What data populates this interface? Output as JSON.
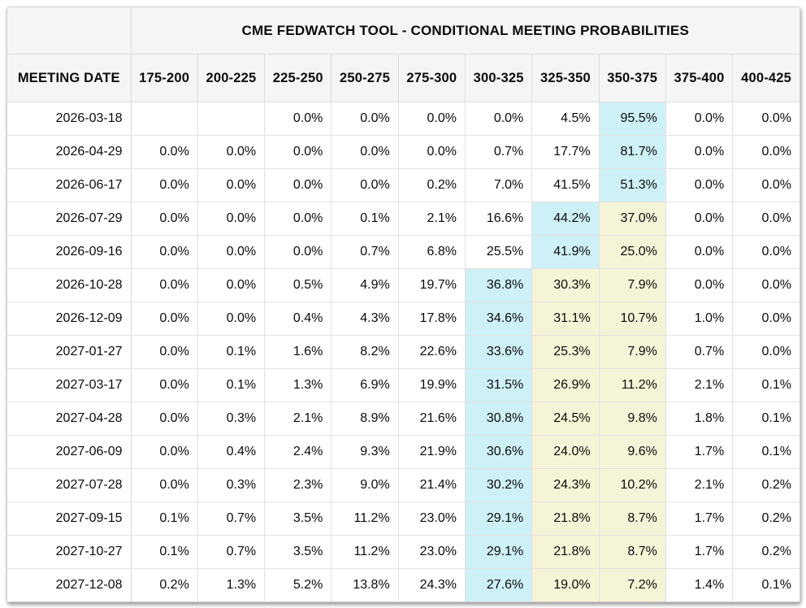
{
  "chart_data": {
    "type": "table",
    "title": "CME FEDWATCH TOOL - CONDITIONAL MEETING PROBABILITIES",
    "date_column_header": "MEETING DATE",
    "rate_range_headers": [
      "175-200",
      "200-225",
      "225-250",
      "250-275",
      "275-300",
      "300-325",
      "325-350",
      "350-375",
      "375-400",
      "400-425"
    ],
    "rows": [
      {
        "date": "2026-03-18",
        "cells": [
          "",
          "",
          "0.0%",
          "0.0%",
          "0.0%",
          "0.0%",
          "4.5%",
          "95.5%",
          "0.0%",
          "0.0%"
        ],
        "highlights": [
          "",
          "",
          "",
          "",
          "",
          "",
          "",
          "cyan",
          "",
          ""
        ]
      },
      {
        "date": "2026-04-29",
        "cells": [
          "0.0%",
          "0.0%",
          "0.0%",
          "0.0%",
          "0.0%",
          "0.7%",
          "17.7%",
          "81.7%",
          "0.0%",
          "0.0%"
        ],
        "highlights": [
          "",
          "",
          "",
          "",
          "",
          "",
          "",
          "cyan",
          "",
          ""
        ]
      },
      {
        "date": "2026-06-17",
        "cells": [
          "0.0%",
          "0.0%",
          "0.0%",
          "0.0%",
          "0.2%",
          "7.0%",
          "41.5%",
          "51.3%",
          "0.0%",
          "0.0%"
        ],
        "highlights": [
          "",
          "",
          "",
          "",
          "",
          "",
          "",
          "cyan",
          "",
          ""
        ]
      },
      {
        "date": "2026-07-29",
        "cells": [
          "0.0%",
          "0.0%",
          "0.0%",
          "0.1%",
          "2.1%",
          "16.6%",
          "44.2%",
          "37.0%",
          "0.0%",
          "0.0%"
        ],
        "highlights": [
          "",
          "",
          "",
          "",
          "",
          "",
          "cyan",
          "yellow",
          "",
          ""
        ]
      },
      {
        "date": "2026-09-16",
        "cells": [
          "0.0%",
          "0.0%",
          "0.0%",
          "0.7%",
          "6.8%",
          "25.5%",
          "41.9%",
          "25.0%",
          "0.0%",
          "0.0%"
        ],
        "highlights": [
          "",
          "",
          "",
          "",
          "",
          "",
          "cyan",
          "yellow",
          "",
          ""
        ]
      },
      {
        "date": "2026-10-28",
        "cells": [
          "0.0%",
          "0.0%",
          "0.5%",
          "4.9%",
          "19.7%",
          "36.8%",
          "30.3%",
          "7.9%",
          "0.0%",
          "0.0%"
        ],
        "highlights": [
          "",
          "",
          "",
          "",
          "",
          "cyan",
          "yellow",
          "yellow",
          "",
          ""
        ]
      },
      {
        "date": "2026-12-09",
        "cells": [
          "0.0%",
          "0.0%",
          "0.4%",
          "4.3%",
          "17.8%",
          "34.6%",
          "31.1%",
          "10.7%",
          "1.0%",
          "0.0%"
        ],
        "highlights": [
          "",
          "",
          "",
          "",
          "",
          "cyan",
          "yellow",
          "yellow",
          "",
          ""
        ]
      },
      {
        "date": "2027-01-27",
        "cells": [
          "0.0%",
          "0.1%",
          "1.6%",
          "8.2%",
          "22.6%",
          "33.6%",
          "25.3%",
          "7.9%",
          "0.7%",
          "0.0%"
        ],
        "highlights": [
          "",
          "",
          "",
          "",
          "",
          "cyan",
          "yellow",
          "yellow",
          "",
          ""
        ]
      },
      {
        "date": "2027-03-17",
        "cells": [
          "0.0%",
          "0.1%",
          "1.3%",
          "6.9%",
          "19.9%",
          "31.5%",
          "26.9%",
          "11.2%",
          "2.1%",
          "0.1%"
        ],
        "highlights": [
          "",
          "",
          "",
          "",
          "",
          "cyan",
          "yellow",
          "yellow",
          "",
          ""
        ]
      },
      {
        "date": "2027-04-28",
        "cells": [
          "0.0%",
          "0.3%",
          "2.1%",
          "8.9%",
          "21.6%",
          "30.8%",
          "24.5%",
          "9.8%",
          "1.8%",
          "0.1%"
        ],
        "highlights": [
          "",
          "",
          "",
          "",
          "",
          "cyan",
          "yellow",
          "yellow",
          "",
          ""
        ]
      },
      {
        "date": "2027-06-09",
        "cells": [
          "0.0%",
          "0.4%",
          "2.4%",
          "9.3%",
          "21.9%",
          "30.6%",
          "24.0%",
          "9.6%",
          "1.7%",
          "0.1%"
        ],
        "highlights": [
          "",
          "",
          "",
          "",
          "",
          "cyan",
          "yellow",
          "yellow",
          "",
          ""
        ]
      },
      {
        "date": "2027-07-28",
        "cells": [
          "0.0%",
          "0.3%",
          "2.3%",
          "9.0%",
          "21.4%",
          "30.2%",
          "24.3%",
          "10.2%",
          "2.1%",
          "0.2%"
        ],
        "highlights": [
          "",
          "",
          "",
          "",
          "",
          "cyan",
          "yellow",
          "yellow",
          "",
          ""
        ]
      },
      {
        "date": "2027-09-15",
        "cells": [
          "0.1%",
          "0.7%",
          "3.5%",
          "11.2%",
          "23.0%",
          "29.1%",
          "21.8%",
          "8.7%",
          "1.7%",
          "0.2%"
        ],
        "highlights": [
          "",
          "",
          "",
          "",
          "",
          "cyan",
          "yellow",
          "yellow",
          "",
          ""
        ]
      },
      {
        "date": "2027-10-27",
        "cells": [
          "0.1%",
          "0.7%",
          "3.5%",
          "11.2%",
          "23.0%",
          "29.1%",
          "21.8%",
          "8.7%",
          "1.7%",
          "0.2%"
        ],
        "highlights": [
          "",
          "",
          "",
          "",
          "",
          "cyan",
          "yellow",
          "yellow",
          "",
          ""
        ]
      },
      {
        "date": "2027-12-08",
        "cells": [
          "0.2%",
          "1.3%",
          "5.2%",
          "13.8%",
          "24.3%",
          "27.6%",
          "19.0%",
          "7.2%",
          "1.4%",
          "0.1%"
        ],
        "highlights": [
          "",
          "",
          "",
          "",
          "",
          "cyan",
          "yellow",
          "yellow",
          "",
          ""
        ]
      }
    ],
    "highlight_colors": {
      "cyan": "#cef0f7",
      "yellow": "#f6f4d7"
    },
    "header_background": "#f5f5f6"
  }
}
